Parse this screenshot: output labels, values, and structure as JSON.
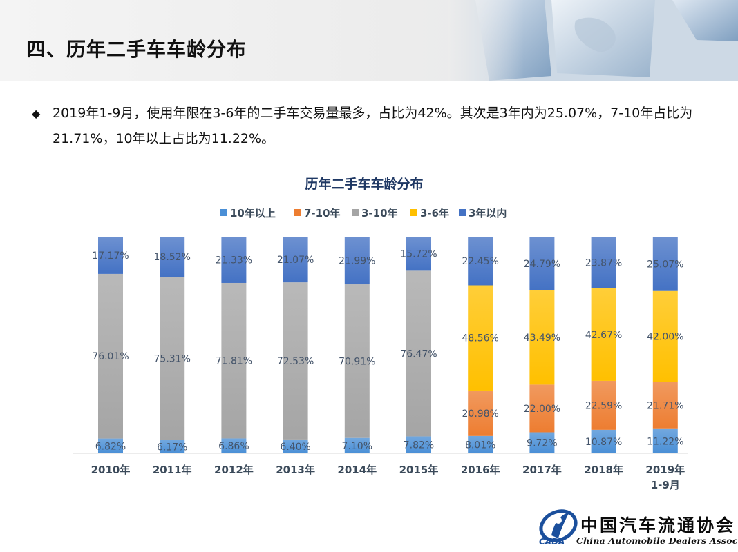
{
  "slide": {
    "title": "四、历年二手车车龄分布",
    "summary": "2019年1-9月，使用年限在3-6年的二手车交易量最多，占比为42%。其次是3年内为25.07%，7-10年占比为21.71%，10年以上占比为11.22%。"
  },
  "logo": {
    "name_cn": "中国汽车流通协会",
    "name_en": "China Automobile Dealers Association",
    "mark_text": "CADA"
  },
  "chart_data": {
    "type": "bar",
    "stacked": true,
    "percent_stacked": true,
    "title": "历年二手车车龄分布",
    "legend_position": "top",
    "categories": [
      "2010年",
      "2011年",
      "2012年",
      "2013年",
      "2014年",
      "2015年",
      "2016年",
      "2017年",
      "2018年",
      "2019年\n1-9月"
    ],
    "series": [
      {
        "name": "10年以上",
        "color": "#4a8fd6",
        "values": [
          6.82,
          6.17,
          6.86,
          6.4,
          7.1,
          7.82,
          8.01,
          9.72,
          10.87,
          11.22
        ],
        "labels": [
          "6.82%",
          "6.17%",
          "6.86%",
          "6.40%",
          "7.10%",
          "7.82%",
          "8.01%",
          "9.72%",
          "10.87%",
          "11.22%"
        ]
      },
      {
        "name": "7-10年",
        "color": "#ed7d31",
        "values": [
          null,
          null,
          null,
          null,
          null,
          null,
          20.98,
          22.0,
          22.59,
          21.71
        ],
        "labels": [
          "",
          "",
          "",
          "",
          "",
          "",
          "20.98%",
          "22.00%",
          "22.59%",
          "21.71%"
        ]
      },
      {
        "name": "3-10年",
        "color": "#a5a5a5",
        "values": [
          76.01,
          75.31,
          71.81,
          72.53,
          70.91,
          76.47,
          null,
          null,
          null,
          null
        ],
        "labels": [
          "76.01%",
          "75.31%",
          "71.81%",
          "72.53%",
          "70.91%",
          "76.47%",
          "",
          "",
          "",
          ""
        ]
      },
      {
        "name": "3-6年",
        "color": "#ffc000",
        "values": [
          null,
          null,
          null,
          null,
          null,
          null,
          48.56,
          43.49,
          42.67,
          42.0
        ],
        "labels": [
          "",
          "",
          "",
          "",
          "",
          "",
          "48.56%",
          "43.49%",
          "42.67%",
          "42.00%"
        ]
      },
      {
        "name": "3年以内",
        "color": "#4472c4",
        "values": [
          17.17,
          18.52,
          21.33,
          21.07,
          21.99,
          15.72,
          22.45,
          24.79,
          23.87,
          25.07
        ],
        "labels": [
          "17.17%",
          "18.52%",
          "21.33%",
          "21.07%",
          "21.99%",
          "15.72%",
          "22.45%",
          "24.79%",
          "23.87%",
          "25.07%"
        ]
      }
    ],
    "ylim": [
      0,
      100
    ],
    "grid": false
  }
}
